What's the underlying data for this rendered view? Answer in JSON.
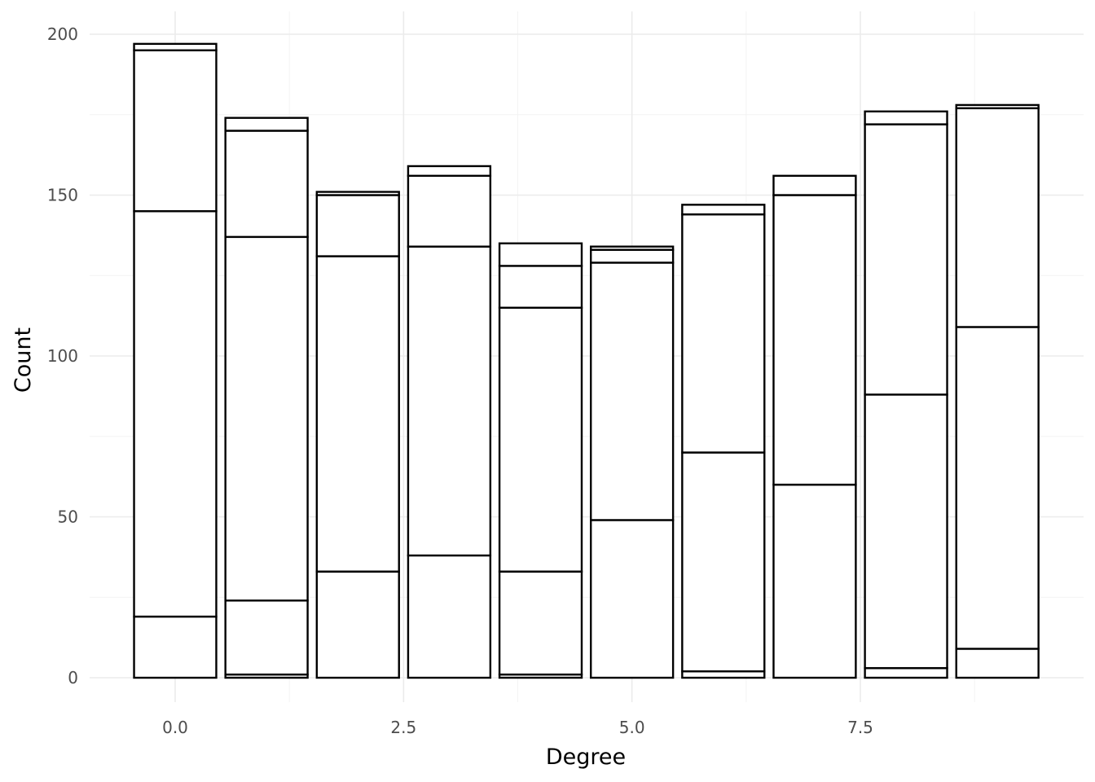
{
  "chart_data": {
    "type": "bar",
    "stacked": true,
    "xlabel": "Degree",
    "ylabel": "Count",
    "xlim": [
      -0.5,
      9.5
    ],
    "ylim": [
      0,
      200
    ],
    "x_ticks": [
      0,
      2.5,
      5,
      7.5
    ],
    "x_tick_labels": [
      "0.0",
      "2.5",
      "5.0",
      "7.5"
    ],
    "y_ticks": [
      0,
      50,
      100,
      150,
      200
    ],
    "y_tick_labels": [
      "0",
      "50",
      "100",
      "150",
      "200"
    ],
    "grid": true,
    "legend": "none",
    "fill_color": "#ffffff",
    "outline_color": "#000000",
    "x": [
      0,
      1,
      2,
      3,
      4,
      5,
      6,
      7,
      8,
      9
    ],
    "stack_boundaries": [
      [
        0,
        19,
        145,
        195,
        197
      ],
      [
        0,
        1,
        24,
        137,
        170,
        174
      ],
      [
        0,
        33,
        131,
        150,
        151
      ],
      [
        0,
        38,
        134,
        156,
        159
      ],
      [
        0,
        1,
        33,
        115,
        128,
        135
      ],
      [
        0,
        49,
        129,
        133,
        134
      ],
      [
        0,
        2,
        70,
        144,
        147
      ],
      [
        0,
        60,
        150,
        156
      ],
      [
        0,
        3,
        88,
        172,
        176
      ],
      [
        0,
        9,
        109,
        177,
        178
      ]
    ]
  }
}
